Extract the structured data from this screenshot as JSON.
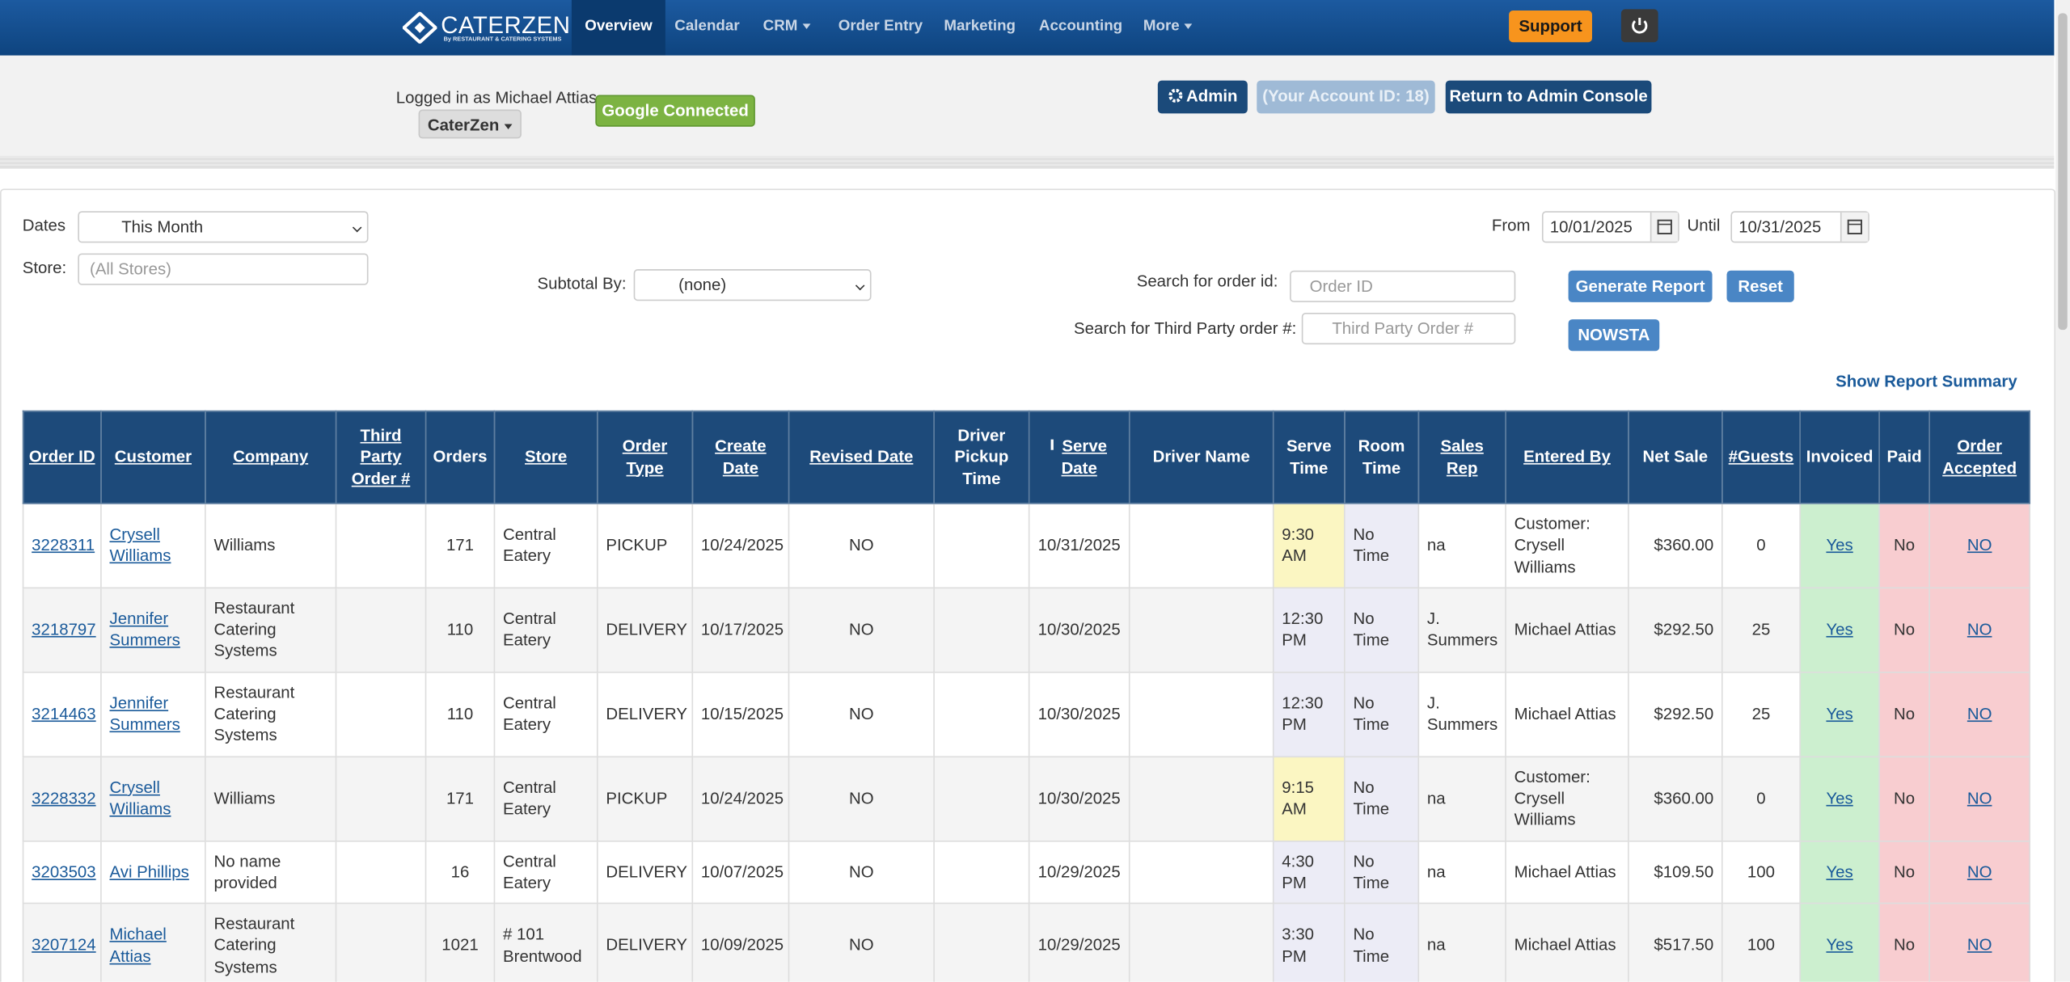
{
  "nav": {
    "logo": "CATERZEN",
    "logo_tagline": "By RESTAURANT & CATERING SYSTEMS",
    "items": [
      "Overview",
      "Calendar",
      "CRM",
      "Order Entry",
      "Marketing",
      "Accounting",
      "More"
    ],
    "support": "Support"
  },
  "account": {
    "logged_in": "Logged in as Michael Attias",
    "company": "CaterZen",
    "google": "Google Connected",
    "admin": "Admin",
    "account_id": "(Your Account ID: 18)",
    "return": "Return to Admin Console"
  },
  "filters": {
    "dates_label": "Dates",
    "dates_value": "This Month",
    "store_label": "Store:",
    "store_placeholder": "(All Stores)",
    "subtotal_label": "Subtotal By:",
    "subtotal_value": "(none)",
    "from_label": "From",
    "from_value": "10/01/2025",
    "until_label": "Until",
    "until_value": "10/31/2025",
    "order_search_label": "Search for order id:",
    "order_placeholder": "Order ID",
    "third_party_label": "Search for Third Party order #:",
    "third_party_placeholder": "Third Party Order #",
    "generate": "Generate Report",
    "reset": "Reset",
    "nowsta": "NOWSTA",
    "summary_link": "Show Report Summary"
  },
  "table": {
    "columns": [
      "Order ID",
      "Customer",
      "Company",
      "Third Party Order #",
      "Orders",
      "Store",
      "Order Type",
      "Create Date",
      "Revised Date",
      "Driver Pickup Time",
      "Serve Date",
      "Driver Name",
      "Serve Time",
      "Room Time",
      "Sales Rep",
      "Entered By",
      "Net Sale",
      "#Guests",
      "Invoiced",
      "Paid",
      "Order Accepted"
    ],
    "rows": [
      [
        "3228311",
        "Crysell Williams",
        "Williams",
        "",
        "171",
        "Central Eatery",
        "PICKUP",
        "10/24/2025",
        "NO",
        "",
        "10/31/2025",
        "",
        "9:30 AM",
        "No Time",
        "na",
        "Customer: Crysell Williams",
        "$360.00",
        "0",
        "Yes",
        "No",
        "NO"
      ],
      [
        "3218797",
        "Jennifer Summers",
        "Restaurant Catering Systems",
        "",
        "110",
        "Central Eatery",
        "DELIVERY",
        "10/17/2025",
        "NO",
        "",
        "10/30/2025",
        "",
        "12:30 PM",
        "No Time",
        "J. Summers",
        "Michael Attias",
        "$292.50",
        "25",
        "Yes",
        "No",
        "NO"
      ],
      [
        "3214463",
        "Jennifer Summers",
        "Restaurant Catering Systems",
        "",
        "110",
        "Central Eatery",
        "DELIVERY",
        "10/15/2025",
        "NO",
        "",
        "10/30/2025",
        "",
        "12:30 PM",
        "No Time",
        "J. Summers",
        "Michael Attias",
        "$292.50",
        "25",
        "Yes",
        "No",
        "NO"
      ],
      [
        "3228332",
        "Crysell Williams",
        "Williams",
        "",
        "171",
        "Central Eatery",
        "PICKUP",
        "10/24/2025",
        "NO",
        "",
        "10/30/2025",
        "",
        "9:15 AM",
        "No Time",
        "na",
        "Customer: Crysell Williams",
        "$360.00",
        "0",
        "Yes",
        "No",
        "NO"
      ],
      [
        "3203503",
        "Avi Phillips",
        "No name provided",
        "",
        "16",
        "Central Eatery",
        "DELIVERY",
        "10/07/2025",
        "NO",
        "",
        "10/29/2025",
        "",
        "4:30 PM",
        "No Time",
        "na",
        "Michael Attias",
        "$109.50",
        "100",
        "Yes",
        "No",
        "NO"
      ],
      [
        "3207124",
        "Michael Attias",
        "Restaurant Catering Systems",
        "",
        "1021",
        "# 101 Brentwood",
        "DELIVERY",
        "10/09/2025",
        "NO",
        "",
        "10/29/2025",
        "",
        "3:30 PM",
        "No Time",
        "na",
        "Michael Attias",
        "$517.50",
        "100",
        "Yes",
        "No",
        "NO"
      ]
    ]
  }
}
